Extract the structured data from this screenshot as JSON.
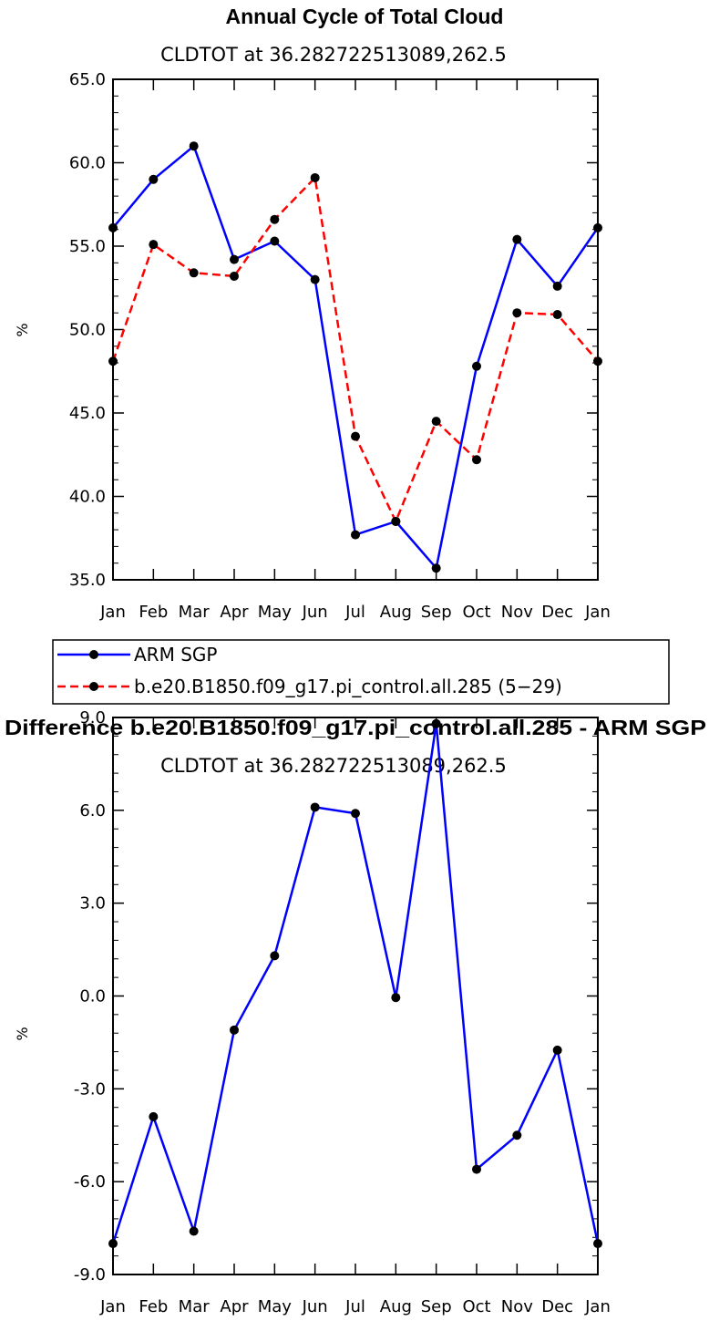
{
  "chart_data": [
    {
      "type": "line",
      "title": "Annual Cycle of Total Cloud",
      "subtitle": "CLDTOT at 36.282722513089,262.5",
      "ylabel": "%",
      "ylim": [
        35.0,
        65.0
      ],
      "yticks": [
        "35.0",
        "40.0",
        "45.0",
        "50.0",
        "55.0",
        "60.0",
        "65.0"
      ],
      "categories": [
        "Jan",
        "Feb",
        "Mar",
        "Apr",
        "May",
        "Jun",
        "Jul",
        "Aug",
        "Sep",
        "Oct",
        "Nov",
        "Dec",
        "Jan"
      ],
      "series": [
        {
          "name": "ARM SGP",
          "color": "#0000ff",
          "dash": "solid",
          "values": [
            56.1,
            59.0,
            61.0,
            54.2,
            55.3,
            53.0,
            37.7,
            38.5,
            35.7,
            47.8,
            55.4,
            52.6,
            56.1
          ]
        },
        {
          "name": "b.e20.B1850.f09_g17.pi_control.all.285 (5−29)",
          "color": "#ff0000",
          "dash": "dashed",
          "values": [
            48.1,
            55.1,
            53.4,
            53.2,
            56.6,
            59.1,
            43.6,
            38.5,
            44.5,
            42.2,
            51.0,
            50.9,
            48.1
          ]
        }
      ],
      "grid": false,
      "legend_position": "below"
    },
    {
      "type": "line",
      "title": "Difference b.e20.B1850.f09_g17.pi_control.all.285 - ARM SGP",
      "subtitle": "CLDTOT at 36.282722513089,262.5",
      "ylabel": "%",
      "ylim": [
        -9.0,
        9.0
      ],
      "yticks": [
        "-9.0",
        "-6.0",
        "-3.0",
        "0.0",
        "3.0",
        "6.0",
        "9.0"
      ],
      "categories": [
        "Jan",
        "Feb",
        "Mar",
        "Apr",
        "May",
        "Jun",
        "Jul",
        "Aug",
        "Sep",
        "Oct",
        "Nov",
        "Dec",
        "Jan"
      ],
      "series": [
        {
          "color": "#0000ff",
          "dash": "solid",
          "values": [
            -8.0,
            -3.9,
            -7.6,
            -1.1,
            1.3,
            6.1,
            5.9,
            -0.05,
            8.8,
            -5.6,
            -4.5,
            -1.75,
            -8.0
          ]
        }
      ],
      "grid": false
    }
  ]
}
